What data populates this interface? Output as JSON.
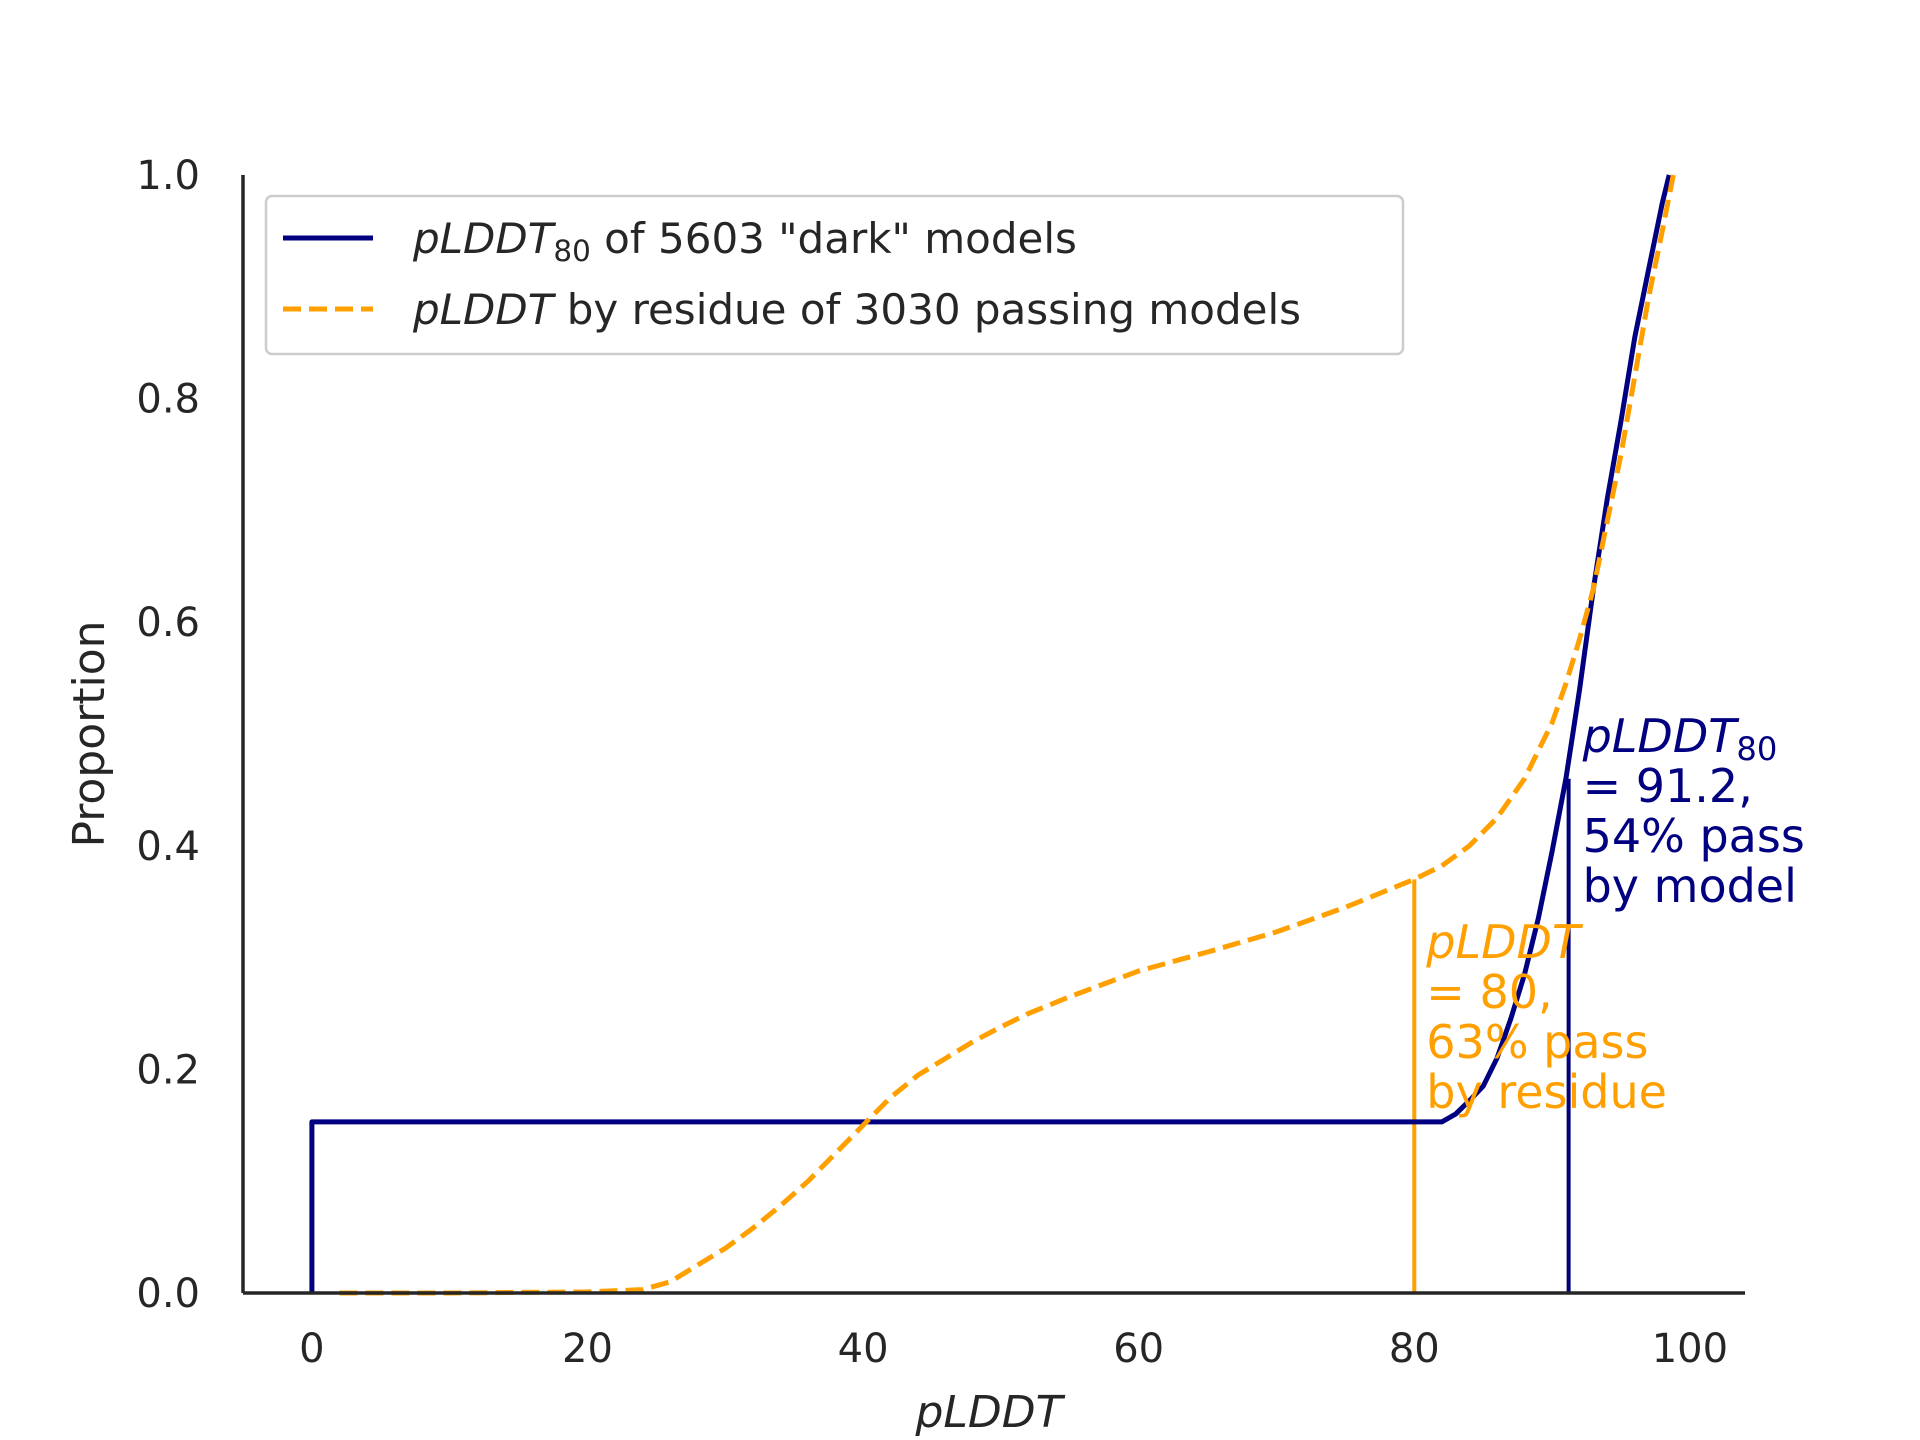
{
  "chart_data": {
    "type": "line",
    "xlabel": "pLDDT",
    "ylabel": "Proportion",
    "xlim": [
      -5,
      104
    ],
    "ylim": [
      0,
      1
    ],
    "xticks": [
      "0",
      "20",
      "40",
      "60",
      "80",
      "100"
    ],
    "yticks": [
      "0.0",
      "0.2",
      "0.4",
      "0.6",
      "0.8",
      "1.0"
    ],
    "colors": {
      "dark": "#000080",
      "passing": "#FFA000",
      "axis": "#262626"
    },
    "legend": {
      "position": "top-left",
      "items": [
        {
          "italic": "pLDDT",
          "sub": "80",
          "rest": " of 5603 \"dark\" models",
          "style": "solid",
          "color": "#000080"
        },
        {
          "italic": "pLDDT",
          "sub": "",
          "rest": " by residue of 3030 passing models",
          "style": "dashed",
          "color": "#FFA000"
        }
      ]
    },
    "series": [
      {
        "name": "pLDDT80 of 5603 \"dark\" models",
        "style": "solid",
        "points": [
          [
            0,
            0
          ],
          [
            0,
            0.153
          ],
          [
            82,
            0.153
          ],
          [
            83,
            0.16
          ],
          [
            84,
            0.172
          ],
          [
            85,
            0.185
          ],
          [
            86,
            0.21
          ],
          [
            87,
            0.245
          ],
          [
            88,
            0.285
          ],
          [
            89,
            0.335
          ],
          [
            90,
            0.395
          ],
          [
            91,
            0.46
          ],
          [
            91.5,
            0.5
          ],
          [
            92,
            0.54
          ],
          [
            93,
            0.63
          ],
          [
            94,
            0.71
          ],
          [
            95,
            0.78
          ],
          [
            96,
            0.855
          ],
          [
            97,
            0.915
          ],
          [
            98,
            0.975
          ],
          [
            98.5,
            1.0
          ]
        ]
      },
      {
        "name": "pLDDT by residue of 3030 passing models",
        "style": "dashed",
        "points": [
          [
            2,
            0
          ],
          [
            10,
            0
          ],
          [
            20,
            0.001
          ],
          [
            24,
            0.003
          ],
          [
            26,
            0.01
          ],
          [
            28,
            0.025
          ],
          [
            30,
            0.04
          ],
          [
            32,
            0.058
          ],
          [
            34,
            0.078
          ],
          [
            36,
            0.1
          ],
          [
            38,
            0.125
          ],
          [
            40,
            0.15
          ],
          [
            42,
            0.175
          ],
          [
            44,
            0.195
          ],
          [
            46,
            0.21
          ],
          [
            48,
            0.225
          ],
          [
            50,
            0.238
          ],
          [
            52,
            0.25
          ],
          [
            55,
            0.265
          ],
          [
            60,
            0.288
          ],
          [
            65,
            0.305
          ],
          [
            70,
            0.323
          ],
          [
            75,
            0.345
          ],
          [
            80,
            0.37
          ],
          [
            82,
            0.382
          ],
          [
            84,
            0.4
          ],
          [
            86,
            0.425
          ],
          [
            88,
            0.46
          ],
          [
            90,
            0.51
          ],
          [
            91,
            0.545
          ],
          [
            92,
            0.585
          ],
          [
            93,
            0.63
          ],
          [
            94,
            0.69
          ],
          [
            95,
            0.75
          ],
          [
            96,
            0.82
          ],
          [
            97,
            0.89
          ],
          [
            98,
            0.95
          ],
          [
            98.8,
            1.0
          ]
        ]
      }
    ],
    "thresholds": [
      {
        "x": 80,
        "y": 0.37,
        "color": "#FFA000",
        "lines": [
          {
            "italic": "pLDDT",
            "sub": ""
          },
          "= 80,",
          "63% pass",
          "by residue"
        ]
      },
      {
        "x": 91.2,
        "y": 0.46,
        "color": "#000080",
        "lines": [
          {
            "italic": "pLDDT",
            "sub": "80"
          },
          "= 91.2,",
          "54% pass",
          "by model"
        ]
      }
    ]
  }
}
